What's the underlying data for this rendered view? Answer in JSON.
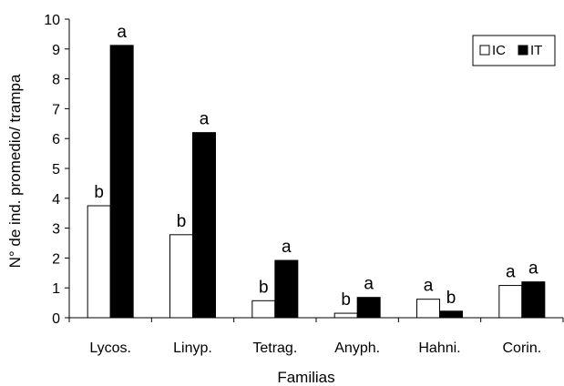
{
  "chart_data": {
    "type": "bar",
    "title": "",
    "xlabel": "Familias",
    "ylabel": "N° de ind. promedio/ trampa",
    "ylim": [
      0,
      10
    ],
    "yticks": [
      0,
      1,
      2,
      3,
      4,
      5,
      6,
      7,
      8,
      9,
      10
    ],
    "grid": false,
    "legend_position": "top-right",
    "categories": [
      "Lycos.",
      "Linyp.",
      "Tetrag.",
      "Anyph.",
      "Hahni.",
      "Corin."
    ],
    "series": [
      {
        "name": "IC",
        "color": "#ffffff",
        "values": [
          3.75,
          2.78,
          0.57,
          0.15,
          0.62,
          1.08
        ],
        "labels": [
          "b",
          "b",
          "b",
          "b",
          "a",
          "a"
        ]
      },
      {
        "name": "IT",
        "color": "#000000",
        "values": [
          9.12,
          6.2,
          1.92,
          0.68,
          0.22,
          1.2
        ],
        "labels": [
          "a",
          "a",
          "a",
          "a",
          "b",
          "a"
        ]
      }
    ]
  }
}
